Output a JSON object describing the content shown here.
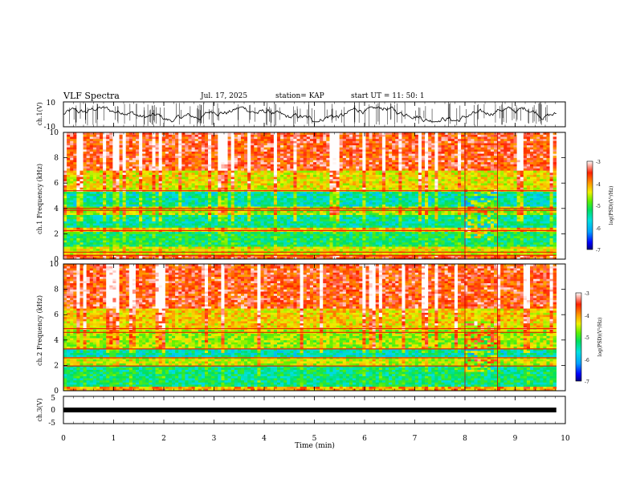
{
  "header": {
    "title": "VLF Spectra",
    "date": "Jul. 17, 2025",
    "station": "station= KAP",
    "start": "start UT = 11: 50: 1"
  },
  "chart_data": [
    {
      "type": "line",
      "name": "ch1-waveform",
      "ylabel": "ch.1(V)",
      "ylim": [
        -10,
        10
      ],
      "yticks": [
        "10",
        "-10"
      ],
      "xlim": [
        0,
        10
      ],
      "noise_level": 0.55
    },
    {
      "type": "heatmap",
      "name": "ch1-spectrogram",
      "ylabel": "ch.1 Frequency (kHz)",
      "ylim": [
        0,
        10
      ],
      "yticks": [
        "0",
        "2",
        "4",
        "6",
        "8",
        "10"
      ],
      "xlim": [
        0,
        9.82
      ],
      "colorbar": {
        "label": "log(PSD)(V²/Hz)",
        "range": [
          -7,
          -3
        ],
        "ticks": [
          "-3",
          "-4",
          "-5",
          "-6",
          "-7"
        ]
      },
      "bands_khz": [
        {
          "from": 0.0,
          "to": 0.3,
          "level": -3.6
        },
        {
          "from": 0.3,
          "to": 1.0,
          "level": -4.4
        },
        {
          "from": 1.0,
          "to": 2.2,
          "level": -5.2
        },
        {
          "from": 2.2,
          "to": 2.5,
          "level": -4.2
        },
        {
          "from": 2.5,
          "to": 3.5,
          "level": -5.4
        },
        {
          "from": 3.5,
          "to": 4.1,
          "level": -4.6
        },
        {
          "from": 4.1,
          "to": 5.4,
          "level": -5.5
        },
        {
          "from": 5.4,
          "to": 7.0,
          "level": -4.3
        },
        {
          "from": 7.0,
          "to": 10.0,
          "level": -3.5
        }
      ],
      "lines_khz": [
        0.3,
        0.55,
        2.25,
        3.85,
        4.0,
        5.4
      ],
      "event_min": [
        8.0,
        8.65
      ]
    },
    {
      "type": "heatmap",
      "name": "ch2-spectrogram",
      "ylabel": "ch.2 Frequency (kHz)",
      "ylim": [
        0,
        10
      ],
      "yticks": [
        "0",
        "2",
        "4",
        "6",
        "8",
        "10"
      ],
      "xlim": [
        0,
        9.82
      ],
      "colorbar": {
        "label": "log(PSD)(V²/Hz)",
        "range": [
          -7,
          -3
        ],
        "ticks": [
          "-3",
          "-4",
          "-5",
          "-6",
          "-7"
        ]
      },
      "bands_khz": [
        {
          "from": 0.0,
          "to": 0.4,
          "level": -4.0
        },
        {
          "from": 0.4,
          "to": 2.0,
          "level": -5.3
        },
        {
          "from": 2.0,
          "to": 2.6,
          "level": -4.5
        },
        {
          "from": 2.6,
          "to": 3.3,
          "level": -5.5
        },
        {
          "from": 3.3,
          "to": 4.8,
          "level": -4.6
        },
        {
          "from": 4.8,
          "to": 6.5,
          "level": -4.2
        },
        {
          "from": 6.5,
          "to": 10.0,
          "level": -3.5
        }
      ],
      "lines_khz": [
        1.95,
        2.6,
        3.3,
        4.6,
        4.9
      ],
      "event_min": [
        8.0,
        8.65
      ]
    },
    {
      "type": "line",
      "name": "ch3-waveform",
      "ylabel": "ch.3(V)",
      "ylim": [
        -5,
        5
      ],
      "yticks": [
        "5",
        "0",
        "-5"
      ],
      "xlim": [
        0,
        9.82
      ],
      "level": 0
    }
  ],
  "xaxis": {
    "label": "Time (min)",
    "ticks": [
      "0",
      "1",
      "2",
      "3",
      "4",
      "5",
      "6",
      "7",
      "8",
      "9",
      "10"
    ],
    "range": [
      0,
      10
    ]
  },
  "palette": [
    "#000080",
    "#0000ff",
    "#00a0ff",
    "#00e0e0",
    "#00e060",
    "#60f000",
    "#f0f000",
    "#ff9900",
    "#ff2000",
    "#ffffff"
  ]
}
